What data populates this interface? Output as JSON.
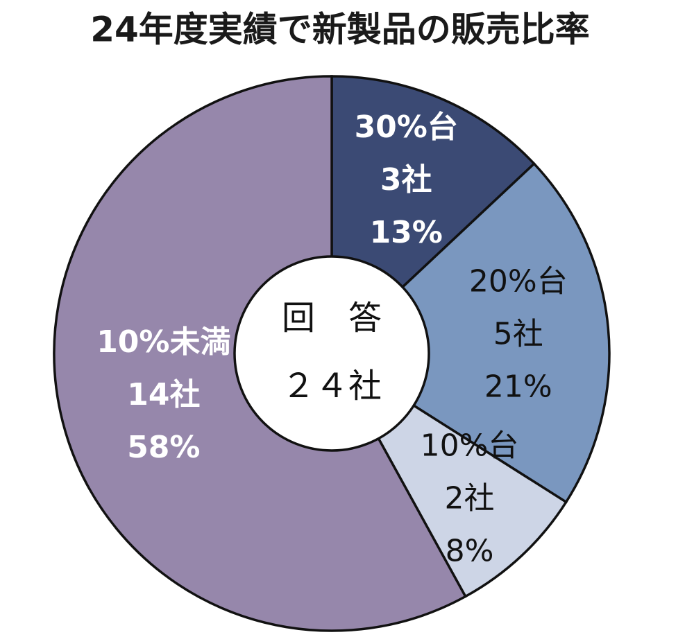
{
  "chart_data": {
    "type": "donut",
    "title": "24年度実績で新製品の販売比率",
    "categories": [
      "30%台",
      "20%台",
      "10%台",
      "10%未満"
    ],
    "count_labels": [
      "3社",
      "5社",
      "2社",
      "14社"
    ],
    "values": [
      13,
      21,
      8,
      58
    ],
    "value_labels": [
      "13%",
      "21%",
      "8%",
      "58%"
    ],
    "colors": [
      "#3b4a74",
      "#7a97bf",
      "#cdd5e6",
      "#9687ab"
    ],
    "label_colors": [
      "#ffffff",
      "#111111",
      "#111111",
      "#ffffff"
    ],
    "center_label": [
      "回　答",
      "２４社"
    ]
  }
}
